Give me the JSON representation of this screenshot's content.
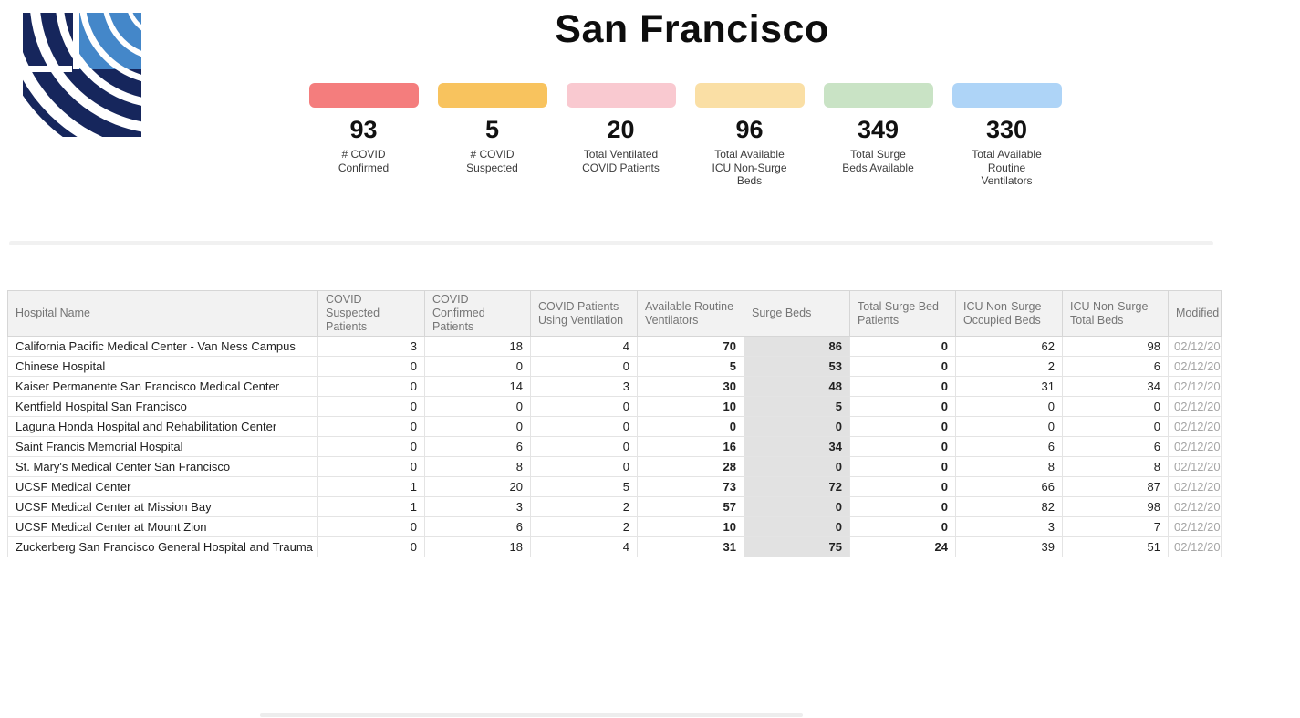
{
  "page": {
    "title": "San Francisco"
  },
  "logo": {
    "name": "hospital-association-logo",
    "dark_blue": "#16265c",
    "light_blue": "#4487c9"
  },
  "stat_cards": [
    {
      "id": "covid-confirmed",
      "value": "93",
      "label": "# COVID\nConfirmed",
      "color": "#f47d7d"
    },
    {
      "id": "covid-suspected",
      "value": "5",
      "label": "# COVID\nSuspected",
      "color": "#f8c35e"
    },
    {
      "id": "ventilated-covid-patients",
      "value": "20",
      "label": "Total Ventilated\nCOVID Patients",
      "color": "#f9c9d0"
    },
    {
      "id": "available-icu-nonsurge-beds",
      "value": "96",
      "label": "Total Available\nICU Non-Surge\nBeds",
      "color": "#fadfa5"
    },
    {
      "id": "surge-beds-available",
      "value": "349",
      "label": "Total Surge\nBeds Available",
      "color": "#c9e3c5"
    },
    {
      "id": "available-routine-ventilators",
      "value": "330",
      "label": "Total Available\nRoutine\nVentilators",
      "color": "#aed4f7"
    }
  ],
  "table": {
    "columns": [
      {
        "key": "hospital_name",
        "label": "Hospital Name"
      },
      {
        "key": "covid_suspected",
        "label": "COVID Suspected Patients"
      },
      {
        "key": "covid_confirmed",
        "label": "COVID Confirmed Patients"
      },
      {
        "key": "covid_ventilation",
        "label": "COVID Patients Using Ventilation"
      },
      {
        "key": "available_routine_ventilators",
        "label": "Available Routine Ventilators"
      },
      {
        "key": "surge_beds",
        "label": "Surge Beds"
      },
      {
        "key": "total_surge_bed_patients",
        "label": "Total Surge Bed Patients"
      },
      {
        "key": "icu_nonsurge_occupied",
        "label": "ICU Non-Surge Occupied Beds"
      },
      {
        "key": "icu_nonsurge_total",
        "label": "ICU Non-Surge Total Beds"
      },
      {
        "key": "modified",
        "label": "Modified"
      }
    ],
    "rows": [
      {
        "hospital_name": "California Pacific Medical Center - Van Ness Campus",
        "covid_suspected": "3",
        "covid_confirmed": "18",
        "covid_ventilation": "4",
        "available_routine_ventilators": "70",
        "surge_beds": "86",
        "total_surge_bed_patients": "0",
        "icu_nonsurge_occupied": "62",
        "icu_nonsurge_total": "98",
        "modified": "02/12/20"
      },
      {
        "hospital_name": "Chinese Hospital",
        "covid_suspected": "0",
        "covid_confirmed": "0",
        "covid_ventilation": "0",
        "available_routine_ventilators": "5",
        "surge_beds": "53",
        "total_surge_bed_patients": "0",
        "icu_nonsurge_occupied": "2",
        "icu_nonsurge_total": "6",
        "modified": "02/12/20"
      },
      {
        "hospital_name": "Kaiser Permanente San Francisco Medical Center",
        "covid_suspected": "0",
        "covid_confirmed": "14",
        "covid_ventilation": "3",
        "available_routine_ventilators": "30",
        "surge_beds": "48",
        "total_surge_bed_patients": "0",
        "icu_nonsurge_occupied": "31",
        "icu_nonsurge_total": "34",
        "modified": "02/12/20"
      },
      {
        "hospital_name": "Kentfield Hospital San Francisco",
        "covid_suspected": "0",
        "covid_confirmed": "0",
        "covid_ventilation": "0",
        "available_routine_ventilators": "10",
        "surge_beds": "5",
        "total_surge_bed_patients": "0",
        "icu_nonsurge_occupied": "0",
        "icu_nonsurge_total": "0",
        "modified": "02/12/20"
      },
      {
        "hospital_name": "Laguna Honda Hospital and Rehabilitation Center",
        "covid_suspected": "0",
        "covid_confirmed": "0",
        "covid_ventilation": "0",
        "available_routine_ventilators": "0",
        "surge_beds": "0",
        "total_surge_bed_patients": "0",
        "icu_nonsurge_occupied": "0",
        "icu_nonsurge_total": "0",
        "modified": "02/12/20"
      },
      {
        "hospital_name": "Saint Francis Memorial Hospital",
        "covid_suspected": "0",
        "covid_confirmed": "6",
        "covid_ventilation": "0",
        "available_routine_ventilators": "16",
        "surge_beds": "34",
        "total_surge_bed_patients": "0",
        "icu_nonsurge_occupied": "6",
        "icu_nonsurge_total": "6",
        "modified": "02/12/20"
      },
      {
        "hospital_name": "St. Mary's Medical Center San Francisco",
        "covid_suspected": "0",
        "covid_confirmed": "8",
        "covid_ventilation": "0",
        "available_routine_ventilators": "28",
        "surge_beds": "0",
        "total_surge_bed_patients": "0",
        "icu_nonsurge_occupied": "8",
        "icu_nonsurge_total": "8",
        "modified": "02/12/20"
      },
      {
        "hospital_name": "UCSF Medical Center",
        "covid_suspected": "1",
        "covid_confirmed": "20",
        "covid_ventilation": "5",
        "available_routine_ventilators": "73",
        "surge_beds": "72",
        "total_surge_bed_patients": "0",
        "icu_nonsurge_occupied": "66",
        "icu_nonsurge_total": "87",
        "modified": "02/12/20"
      },
      {
        "hospital_name": "UCSF Medical Center at Mission Bay",
        "covid_suspected": "1",
        "covid_confirmed": "3",
        "covid_ventilation": "2",
        "available_routine_ventilators": "57",
        "surge_beds": "0",
        "total_surge_bed_patients": "0",
        "icu_nonsurge_occupied": "82",
        "icu_nonsurge_total": "98",
        "modified": "02/12/20"
      },
      {
        "hospital_name": "UCSF Medical Center at Mount Zion",
        "covid_suspected": "0",
        "covid_confirmed": "6",
        "covid_ventilation": "2",
        "available_routine_ventilators": "10",
        "surge_beds": "0",
        "total_surge_bed_patients": "0",
        "icu_nonsurge_occupied": "3",
        "icu_nonsurge_total": "7",
        "modified": "02/12/20"
      },
      {
        "hospital_name": "Zuckerberg San Francisco General Hospital and Trauma",
        "covid_suspected": "0",
        "covid_confirmed": "18",
        "covid_ventilation": "4",
        "available_routine_ventilators": "31",
        "surge_beds": "75",
        "total_surge_bed_patients": "24",
        "icu_nonsurge_occupied": "39",
        "icu_nonsurge_total": "51",
        "modified": "02/12/20"
      }
    ]
  }
}
